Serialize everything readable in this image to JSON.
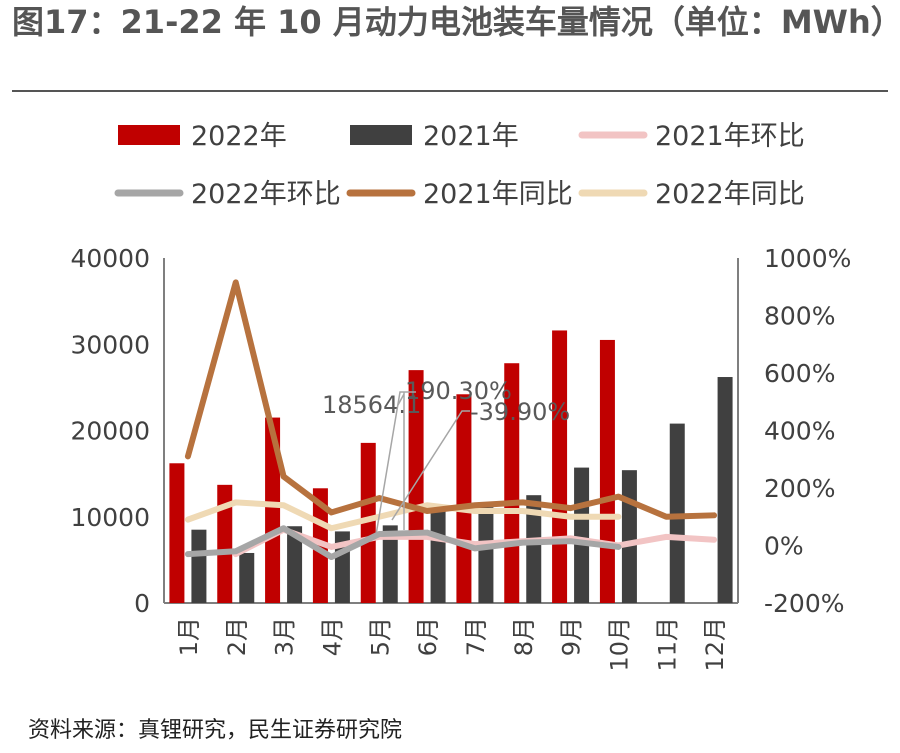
{
  "title": "图17：21-22 年 10 月动力电池装车量情况（单位：MWh）",
  "source": "资料来源：真锂研究，民生证券研究院",
  "chart_data": {
    "type": "bar",
    "categories": [
      "1月",
      "2月",
      "3月",
      "4月",
      "5月",
      "6月",
      "7月",
      "8月",
      "9月",
      "10月",
      "11月",
      "12月"
    ],
    "left_axis": {
      "ylim": [
        0,
        40000
      ],
      "ticks": [
        "0",
        "10000",
        "20000",
        "30000",
        "40000"
      ]
    },
    "right_axis": {
      "ylim": [
        -200,
        1000
      ],
      "ticks": [
        "-200%",
        "0%",
        "200%",
        "400%",
        "600%",
        "800%",
        "1000%"
      ]
    },
    "series": [
      {
        "name": "2022年",
        "kind": "bar",
        "axis": "left",
        "color": "#C00000",
        "values": [
          16200,
          13700,
          21500,
          13300,
          18564.1,
          27000,
          24200,
          27800,
          31600,
          30500,
          null,
          null
        ]
      },
      {
        "name": "2021年",
        "kind": "bar",
        "axis": "left",
        "color": "#404040",
        "values": [
          8500,
          5800,
          8900,
          8300,
          9000,
          11000,
          11100,
          12500,
          15700,
          15400,
          20800,
          26200
        ]
      },
      {
        "name": "2021年环比",
        "kind": "line",
        "axis": "right",
        "color": "#F2C4C4",
        "values": [
          null,
          -30,
          55,
          -5,
          30,
          30,
          5,
          15,
          25,
          0,
          30,
          20
        ]
      },
      {
        "name": "2022年环比",
        "kind": "line",
        "axis": "right",
        "color": "#A6A6A6",
        "values": [
          -30,
          -20,
          60,
          -40,
          40,
          45,
          -10,
          10,
          15,
          -5,
          null,
          null
        ]
      },
      {
        "name": "2021年同比",
        "kind": "line",
        "axis": "right",
        "color": "#B7723E",
        "values": [
          310,
          915,
          240,
          115,
          165,
          120,
          140,
          150,
          130,
          170,
          100,
          105
        ]
      },
      {
        "name": "2022年同比",
        "kind": "line",
        "axis": "right",
        "color": "#EFD9B4",
        "values": [
          90,
          150,
          140,
          60,
          100,
          140,
          120,
          120,
          100,
          100,
          null,
          null
        ]
      }
    ],
    "annotations": [
      {
        "text": "18564.1"
      },
      {
        "text": "190.30%"
      },
      {
        "text": "-39.90%"
      }
    ],
    "legend_position": "top"
  }
}
